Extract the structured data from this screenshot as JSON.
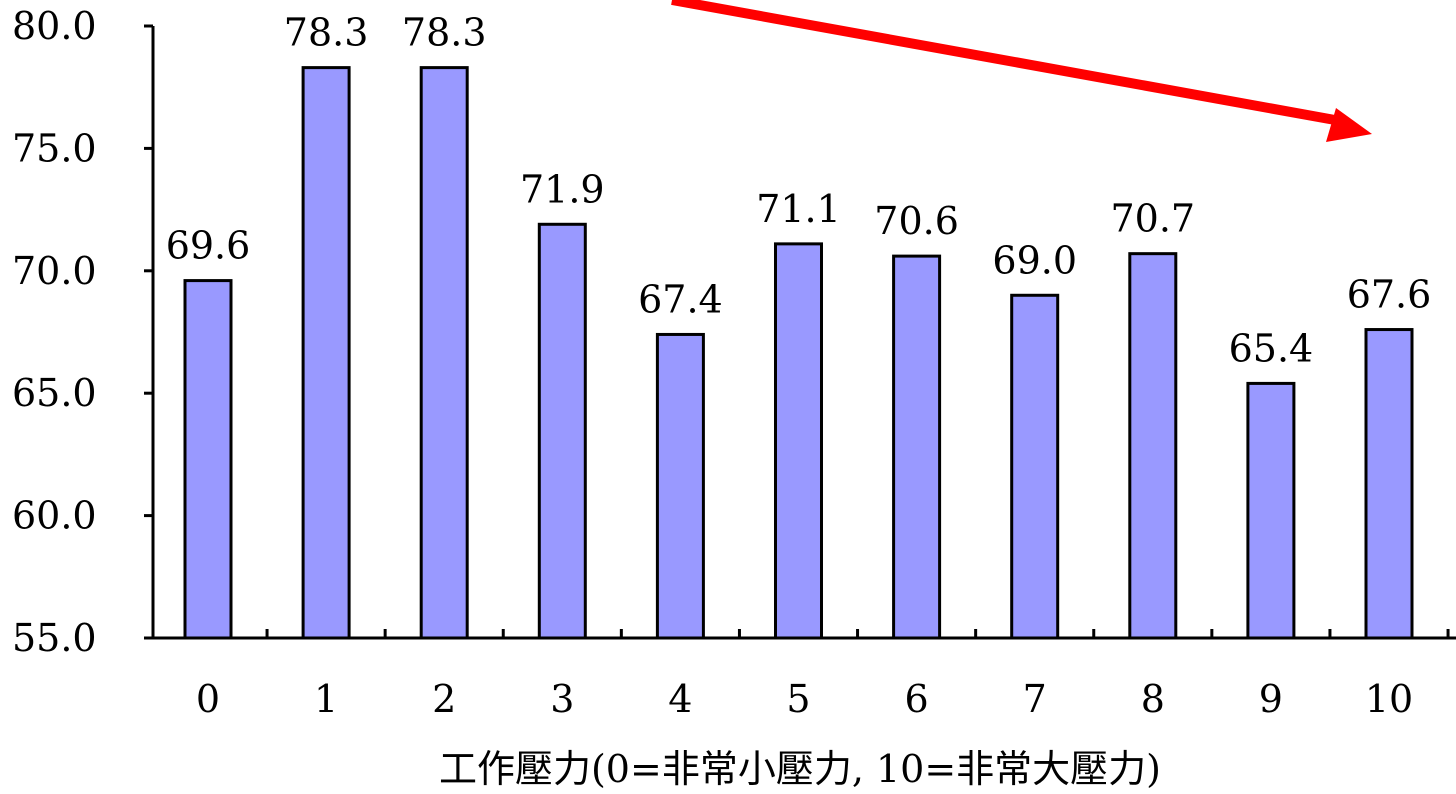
{
  "chart_data": {
    "type": "bar",
    "categories": [
      "0",
      "1",
      "2",
      "3",
      "4",
      "5",
      "6",
      "7",
      "8",
      "9",
      "10"
    ],
    "values": [
      69.6,
      78.3,
      78.3,
      71.9,
      67.4,
      71.1,
      70.6,
      69.0,
      70.7,
      65.4,
      67.6
    ],
    "value_labels": [
      "69.6",
      "78.3",
      "78.3",
      "71.9",
      "67.4",
      "71.1",
      "70.6",
      "69.0",
      "70.7",
      "65.4",
      "67.6"
    ],
    "xlabel": "工作壓力(0=非常小壓力, 10=非常大壓力)",
    "ylabel": "",
    "ylim": [
      55.0,
      80.0
    ],
    "yticks": [
      "55.0",
      "60.0",
      "65.0",
      "70.0",
      "75.0",
      "80.0"
    ],
    "grid": false,
    "bar_color": "#9999ff",
    "bar_outline": "#000000",
    "trend_arrow": {
      "direction": "down-right",
      "color": "#ff0000"
    }
  }
}
